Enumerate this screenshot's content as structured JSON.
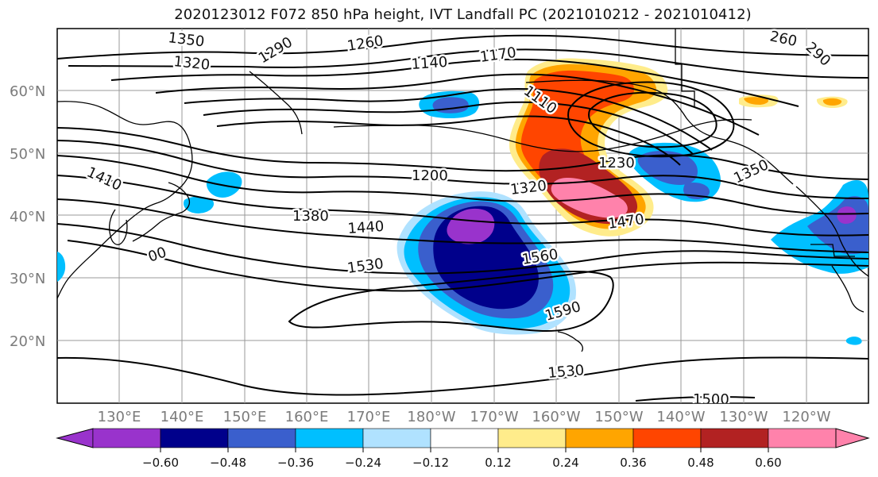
{
  "title": "2020123012 F072 850 hPa height, IVT Landfall PC (2021010212 - 2021010412)",
  "map": {
    "lat_labels": [
      "60°N",
      "50°N",
      "40°N",
      "30°N",
      "20°N"
    ],
    "lon_labels": [
      "130°E",
      "140°E",
      "150°E",
      "160°E",
      "170°E",
      "180°W",
      "170°W",
      "160°W",
      "150°W",
      "140°W",
      "130°W",
      "120°W"
    ],
    "contour_labels": [
      "1350",
      "1320",
      "1290",
      "1260",
      "1140",
      "1170",
      "1410",
      "1110",
      "1200",
      "1230",
      "1350",
      "1380",
      "1440",
      "1320",
      "1470",
      "1530",
      "1560",
      "1590",
      "1530",
      "1500",
      "260",
      "290",
      "00"
    ],
    "colors": {
      "pc_negative": [
        "#9933cc",
        "#00008b",
        "#3a5fcd",
        "#00bfff",
        "#b0e2ff"
      ],
      "pc_positive": [
        "#ffec8b",
        "#ffa500",
        "#ff4500",
        "#b22222",
        "#ff82ab"
      ],
      "neutral": "#ffffff"
    }
  },
  "colorbar": {
    "tick_labels": [
      "−0.60",
      "−0.48",
      "−0.36",
      "−0.24",
      "−0.12",
      "0.12",
      "0.24",
      "0.36",
      "0.48",
      "0.60"
    ],
    "colors": [
      "#9933cc",
      "#00008b",
      "#3a5fcd",
      "#00bfff",
      "#b0e2ff",
      "#ffffff",
      "#ffec8b",
      "#ffa500",
      "#ff4500",
      "#b22222",
      "#ff82ab"
    ]
  }
}
